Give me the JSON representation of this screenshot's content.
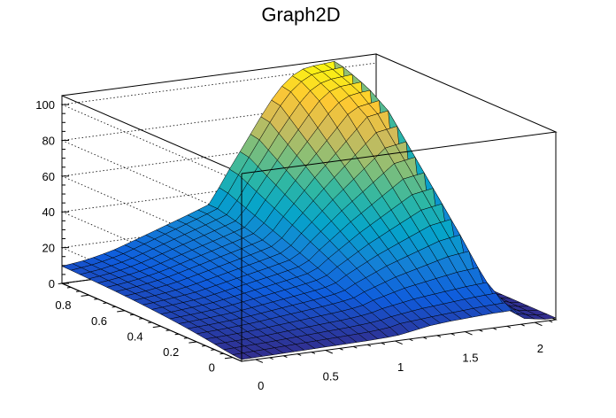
{
  "chart_data": {
    "type": "surface3d",
    "title": "Graph2D",
    "xlabel": "",
    "ylabel": "",
    "zlabel": "",
    "xlim": [
      -0.1,
      2.15
    ],
    "ylim": [
      -0.05,
      0.95
    ],
    "zlim": [
      0,
      105
    ],
    "x_ticks": [
      0,
      0.5,
      1,
      1.5,
      2
    ],
    "x_tick_labels": [
      "0",
      "0.5",
      "1",
      "1.5",
      "2"
    ],
    "y_ticks": [
      0,
      0.2,
      0.4,
      0.6,
      0.8
    ],
    "y_tick_labels": [
      "0",
      "0.2",
      "0.4",
      "0.6",
      "0.8"
    ],
    "z_ticks": [
      0,
      20,
      40,
      60,
      80,
      100
    ],
    "z_tick_labels": [
      "0",
      "20",
      "40",
      "60",
      "80",
      "100"
    ],
    "grid": true,
    "colormap": [
      "#352a87",
      "#0f5cdd",
      "#1481d6",
      "#06a4ca",
      "#2eb7a4",
      "#87bf77",
      "#d1bb59",
      "#fec832",
      "#f9fb0e"
    ],
    "grid_x": [
      -0.1,
      -0.025,
      0.05,
      0.125,
      0.2,
      0.275,
      0.35,
      0.425,
      0.5,
      0.575,
      0.65,
      0.725,
      0.8,
      0.875,
      0.95,
      1.025,
      1.1,
      1.175,
      1.25,
      1.325,
      1.4,
      1.475,
      1.55,
      1.625,
      1.7,
      1.775,
      1.85,
      1.925,
      2.0,
      2.075,
      2.15
    ],
    "grid_y": [
      -0.05,
      0.0,
      0.05,
      0.1,
      0.15,
      0.2,
      0.25,
      0.3,
      0.35,
      0.4,
      0.45,
      0.5,
      0.55,
      0.6,
      0.65,
      0.7,
      0.75,
      0.8,
      0.85,
      0.9,
      0.95
    ],
    "z_values": [
      [
        1.0,
        1.1,
        1.2,
        1.3,
        1.4,
        1.5,
        1.6,
        1.7,
        1.8,
        1.9,
        2.0,
        2.1,
        2.2,
        2.4,
        2.6,
        3.0,
        4.0,
        5.0,
        6.0,
        6.5,
        7.0,
        7.3,
        7.6,
        7.9,
        8.2,
        8.3,
        8.5,
        3.0,
        2.0,
        1.0,
        1.0
      ],
      [
        1.5,
        1.7,
        1.9,
        2.1,
        2.3,
        2.5,
        2.7,
        2.9,
        3.1,
        3.3,
        3.5,
        3.7,
        3.9,
        4.2,
        4.6,
        5.2,
        6.5,
        7.0,
        7.5,
        8.0,
        8.4,
        8.8,
        9.2,
        9.6,
        10.0,
        10.2,
        10.4,
        3.5,
        2.3,
        1.2,
        1.0
      ],
      [
        2.2,
        2.4,
        2.6,
        2.8,
        3.0,
        3.3,
        3.6,
        3.9,
        4.2,
        4.5,
        4.8,
        5.1,
        5.4,
        5.8,
        6.3,
        7.0,
        8.2,
        9.0,
        9.8,
        10.5,
        11.0,
        11.5,
        12.0,
        12.5,
        13.0,
        13.3,
        13.6,
        4.0,
        2.6,
        1.4,
        1.0
      ],
      [
        3.0,
        3.2,
        3.4,
        3.6,
        3.9,
        4.2,
        4.6,
        5.0,
        5.4,
        5.8,
        6.2,
        6.6,
        7.0,
        7.5,
        8.1,
        9.0,
        10.5,
        11.5,
        12.5,
        13.5,
        14.2,
        14.8,
        15.4,
        16.0,
        16.6,
        17.0,
        17.4,
        5.0,
        3.0,
        1.6,
        1.0
      ],
      [
        3.8,
        4.0,
        4.2,
        4.5,
        4.8,
        5.2,
        5.7,
        6.2,
        6.7,
        7.2,
        7.7,
        8.2,
        8.7,
        9.3,
        10.0,
        11.0,
        13.0,
        14.5,
        16.0,
        17.5,
        18.5,
        19.5,
        20.5,
        21.5,
        22.5,
        23.0,
        23.5,
        6.0,
        3.5,
        1.8,
        1.0
      ],
      [
        4.5,
        4.8,
        5.1,
        5.4,
        5.8,
        6.2,
        6.8,
        7.4,
        8.0,
        8.6,
        9.2,
        9.8,
        10.4,
        11.1,
        11.9,
        13.0,
        15.5,
        17.5,
        19.5,
        21.5,
        23.0,
        24.5,
        26.0,
        27.5,
        29.0,
        29.8,
        30.5,
        7.0,
        4.0,
        2.0,
        1.0
      ],
      [
        5.2,
        5.5,
        5.8,
        6.2,
        6.6,
        7.1,
        7.7,
        8.4,
        9.1,
        9.8,
        10.5,
        11.2,
        11.9,
        12.7,
        13.6,
        15.0,
        18.0,
        20.5,
        23.0,
        25.5,
        27.5,
        29.5,
        31.5,
        33.5,
        35.5,
        36.5,
        37.5,
        8.5,
        4.5,
        2.2,
        1.0
      ],
      [
        5.8,
        6.1,
        6.5,
        6.9,
        7.4,
        7.9,
        8.6,
        9.4,
        10.2,
        11.0,
        11.8,
        12.6,
        13.4,
        14.3,
        15.3,
        17.0,
        20.5,
        23.5,
        26.5,
        29.5,
        32.0,
        34.5,
        37.0,
        39.5,
        42.0,
        43.0,
        44.0,
        10.0,
        5.0,
        2.4,
        1.0
      ],
      [
        6.3,
        6.7,
        7.1,
        7.6,
        8.1,
        8.7,
        9.5,
        10.4,
        11.3,
        12.2,
        13.1,
        14.0,
        14.9,
        15.9,
        17.0,
        19.0,
        23.0,
        26.5,
        30.0,
        33.5,
        36.5,
        39.5,
        42.5,
        45.5,
        48.5,
        49.5,
        50.5,
        12.0,
        5.5,
        2.6,
        1.0
      ],
      [
        6.8,
        7.2,
        7.7,
        8.2,
        8.8,
        9.4,
        10.3,
        11.3,
        12.3,
        13.3,
        14.3,
        15.3,
        16.3,
        17.4,
        18.6,
        21.0,
        25.5,
        29.5,
        33.5,
        37.5,
        41.0,
        44.5,
        48.0,
        51.5,
        55.0,
        56.0,
        57.0,
        14.0,
        6.0,
        2.8,
        1.0
      ],
      [
        7.2,
        7.7,
        8.2,
        8.8,
        9.4,
        10.1,
        11.1,
        12.2,
        13.3,
        14.4,
        15.5,
        16.6,
        17.7,
        18.9,
        20.2,
        23.0,
        28.0,
        32.5,
        37.0,
        41.5,
        45.5,
        49.5,
        53.5,
        57.5,
        61.5,
        62.5,
        63.5,
        16.0,
        6.5,
        3.0,
        1.0
      ],
      [
        7.6,
        8.1,
        8.7,
        9.3,
        10.0,
        10.8,
        11.9,
        13.1,
        14.3,
        15.5,
        16.7,
        17.9,
        19.1,
        20.4,
        21.8,
        25.0,
        30.5,
        35.5,
        40.5,
        45.5,
        50.0,
        54.5,
        59.0,
        63.5,
        68.0,
        69.0,
        70.0,
        18.0,
        7.0,
        3.2,
        1.0
      ],
      [
        7.9,
        8.5,
        9.1,
        9.8,
        10.6,
        11.5,
        12.7,
        14.0,
        15.3,
        16.6,
        17.9,
        19.2,
        20.5,
        21.9,
        23.4,
        27.0,
        33.0,
        38.5,
        44.0,
        49.5,
        54.5,
        59.5,
        64.5,
        69.5,
        74.5,
        75.5,
        76.5,
        20.0,
        7.5,
        3.4,
        1.0
      ],
      [
        8.2,
        8.8,
        9.5,
        10.3,
        11.2,
        12.2,
        13.5,
        14.9,
        16.3,
        17.7,
        19.1,
        20.5,
        21.9,
        23.4,
        25.0,
        29.0,
        35.5,
        41.5,
        47.5,
        53.5,
        59.0,
        64.5,
        70.0,
        75.5,
        81.0,
        82.0,
        83.0,
        22.0,
        8.0,
        3.6,
        1.0
      ],
      [
        8.5,
        9.1,
        9.8,
        10.7,
        11.7,
        12.8,
        14.2,
        15.7,
        17.2,
        18.7,
        20.2,
        21.7,
        23.2,
        24.8,
        26.5,
        31.0,
        38.0,
        44.5,
        51.0,
        57.5,
        63.5,
        69.5,
        75.5,
        81.5,
        87.5,
        88.5,
        89.5,
        24.0,
        8.5,
        3.8,
        1.0
      ],
      [
        8.7,
        9.4,
        10.1,
        11.0,
        12.1,
        13.3,
        14.8,
        16.4,
        18.0,
        19.6,
        21.2,
        22.8,
        24.4,
        26.1,
        27.9,
        33.0,
        40.5,
        47.5,
        54.5,
        61.5,
        68.0,
        74.5,
        81.0,
        87.5,
        91.0,
        92.0,
        93.0,
        26.0,
        9.0,
        4.0,
        1.0
      ],
      [
        8.9,
        9.6,
        10.4,
        11.3,
        12.4,
        13.7,
        15.3,
        17.0,
        18.7,
        20.4,
        22.1,
        23.8,
        25.5,
        27.3,
        29.2,
        35.0,
        43.0,
        50.5,
        58.0,
        65.5,
        72.5,
        79.5,
        86.5,
        92.0,
        95.0,
        96.0,
        96.5,
        28.0,
        9.5,
        4.2,
        1.0
      ],
      [
        9.1,
        9.8,
        10.6,
        11.6,
        12.8,
        14.2,
        15.9,
        17.7,
        19.5,
        21.3,
        23.1,
        24.9,
        26.7,
        28.6,
        30.6,
        37.0,
        45.5,
        53.5,
        61.5,
        69.5,
        77.0,
        84.5,
        91.5,
        96.0,
        98.0,
        98.5,
        99.0,
        30.0,
        10.0,
        4.4,
        1.0
      ],
      [
        9.3,
        10.0,
        10.8,
        11.9,
        13.1,
        14.6,
        16.4,
        18.3,
        20.2,
        22.1,
        24.0,
        25.9,
        27.8,
        29.8,
        31.9,
        39.0,
        48.0,
        56.5,
        65.0,
        73.5,
        81.5,
        89.0,
        95.0,
        98.5,
        100.0,
        100.5,
        101.0,
        32.0,
        10.5,
        4.6,
        1.0
      ],
      [
        9.5,
        10.2,
        11.0,
        12.1,
        13.4,
        14.9,
        16.8,
        18.8,
        20.8,
        22.8,
        24.8,
        26.8,
        28.8,
        30.9,
        33.1,
        41.0,
        50.5,
        59.5,
        68.5,
        77.5,
        86.0,
        93.0,
        98.0,
        101.0,
        102.0,
        102.5,
        103.0,
        34.0,
        11.0,
        4.8,
        1.0
      ],
      [
        9.6,
        10.3,
        11.1,
        12.2,
        13.5,
        15.0,
        16.9,
        18.9,
        20.9,
        22.9,
        24.9,
        26.9,
        28.9,
        31.0,
        33.2,
        42.0,
        51.5,
        60.5,
        69.5,
        78.5,
        87.0,
        94.0,
        99.0,
        102.0,
        103.0,
        103.5,
        104.0,
        35.0,
        11.5,
        5.0,
        1.0
      ]
    ]
  }
}
